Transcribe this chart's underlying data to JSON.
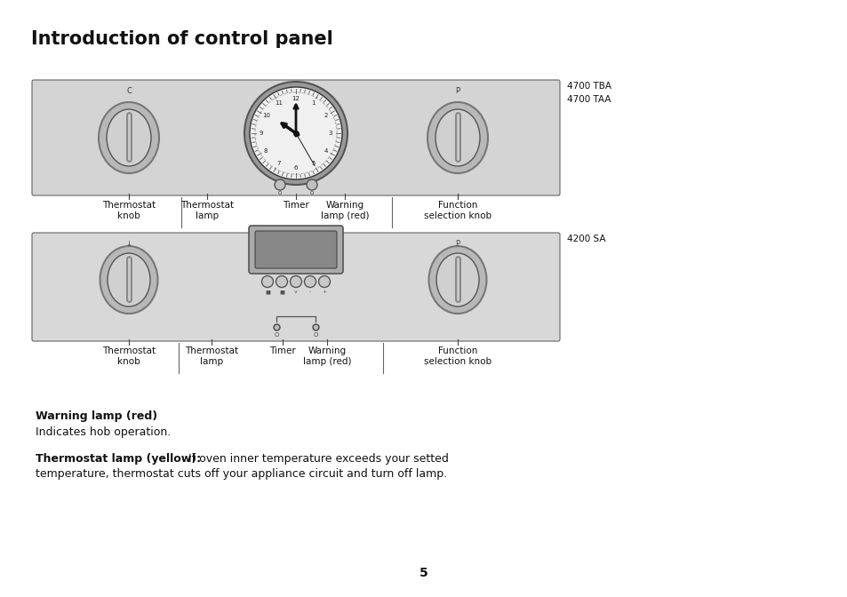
{
  "title": "Introduction of control panel",
  "title_fontsize": 15,
  "bg_color": "#ffffff",
  "panel1_color": "#d4d4d4",
  "panel2_color": "#d8d8d8",
  "panel_border_color": "#666666",
  "model1_label": "4700 TBA\n4700 TAA",
  "model2_label": "4200 SA",
  "labels_panel1": [
    "Thermostat\nknob",
    "Thermostat\nlamp",
    "Timer",
    "Warning\nlamp (red)",
    "Function\nselection knob"
  ],
  "labels_panel2": [
    "Thermostat\nknob",
    "Thermostat\nlamp",
    "Timer",
    "Warning\nlamp (red)",
    "Function\nselection knob"
  ],
  "warning_title": "Warning lamp (red)",
  "warning_text": "Indicates hob operation.",
  "thermostat_bold": "Thermostat lamp (yellow):",
  "thermostat_normal": " If oven inner temperature exceeds your setted\ntemperature, thermostat cuts off your appliance circuit and turn off lamp.",
  "page_number": "5"
}
